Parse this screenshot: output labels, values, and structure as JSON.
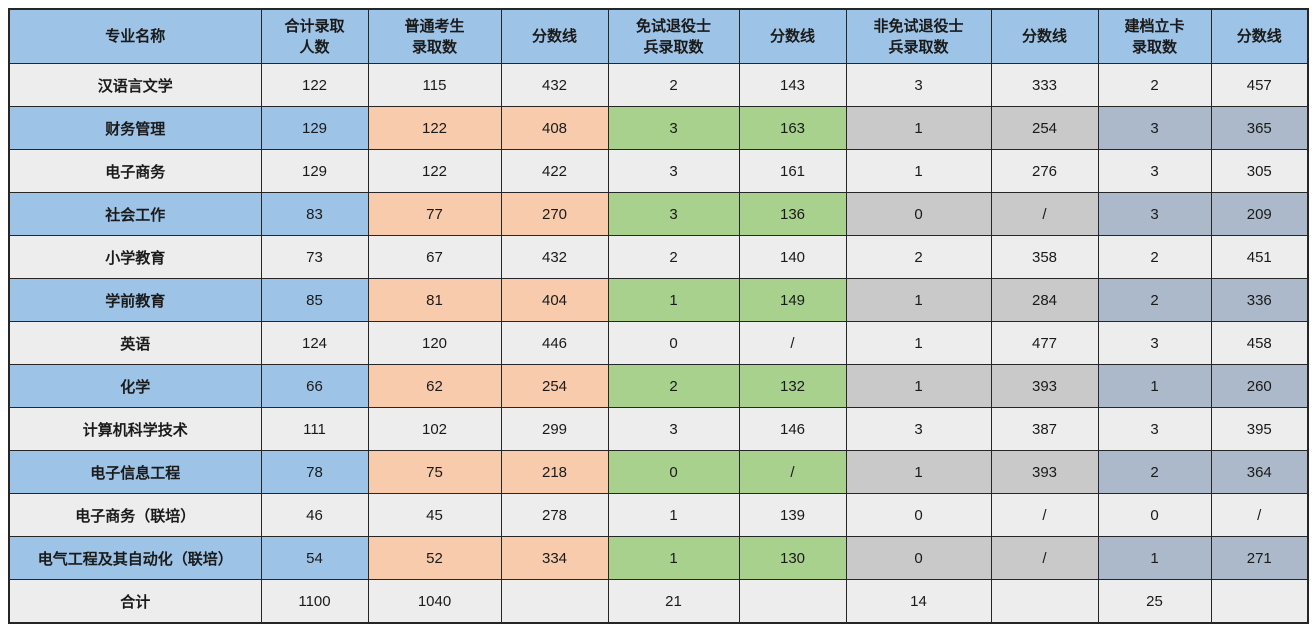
{
  "table": {
    "headers": [
      "专业名称",
      "合计录取\n人数",
      "普通考生\n录取数",
      "分数线",
      "免试退役士\n兵录取数",
      "分数线",
      "非免试退役士\n兵录取数",
      "分数线",
      "建档立卡\n录取数",
      "分数线"
    ],
    "rows": [
      {
        "name": "汉语言文学",
        "variant": "plain",
        "values": [
          "122",
          "115",
          "432",
          "2",
          "143",
          "3",
          "333",
          "2",
          "457"
        ]
      },
      {
        "name": "财务管理",
        "variant": "colored",
        "values": [
          "129",
          "122",
          "408",
          "3",
          "163",
          "1",
          "254",
          "3",
          "365"
        ]
      },
      {
        "name": "电子商务",
        "variant": "plain",
        "values": [
          "129",
          "122",
          "422",
          "3",
          "161",
          "1",
          "276",
          "3",
          "305"
        ]
      },
      {
        "name": "社会工作",
        "variant": "colored",
        "values": [
          "83",
          "77",
          "270",
          "3",
          "136",
          "0",
          "/",
          "3",
          "209"
        ]
      },
      {
        "name": "小学教育",
        "variant": "plain",
        "values": [
          "73",
          "67",
          "432",
          "2",
          "140",
          "2",
          "358",
          "2",
          "451"
        ]
      },
      {
        "name": "学前教育",
        "variant": "colored",
        "values": [
          "85",
          "81",
          "404",
          "1",
          "149",
          "1",
          "284",
          "2",
          "336"
        ]
      },
      {
        "name": "英语",
        "variant": "plain",
        "values": [
          "124",
          "120",
          "446",
          "0",
          "/",
          "1",
          "477",
          "3",
          "458"
        ]
      },
      {
        "name": "化学",
        "variant": "colored",
        "values": [
          "66",
          "62",
          "254",
          "2",
          "132",
          "1",
          "393",
          "1",
          "260"
        ]
      },
      {
        "name": "计算机科学技术",
        "variant": "plain",
        "values": [
          "111",
          "102",
          "299",
          "3",
          "146",
          "3",
          "387",
          "3",
          "395"
        ]
      },
      {
        "name": "电子信息工程",
        "variant": "colored",
        "values": [
          "78",
          "75",
          "218",
          "0",
          "/",
          "1",
          "393",
          "2",
          "364"
        ]
      },
      {
        "name": "电子商务（联培）",
        "variant": "plain",
        "values": [
          "46",
          "45",
          "278",
          "1",
          "139",
          "0",
          "/",
          "0",
          "/"
        ]
      },
      {
        "name": "电气工程及其自动化（联培）",
        "variant": "colored",
        "values": [
          "54",
          "52",
          "334",
          "1",
          "130",
          "0",
          "/",
          "1",
          "271"
        ]
      },
      {
        "name": "合计",
        "variant": "total",
        "values": [
          "1100",
          "1040",
          "",
          "21",
          "",
          "14",
          "",
          "25",
          ""
        ]
      }
    ]
  },
  "colors": {
    "header_bg": "#9DC3E6",
    "plain_bg": "#EDEDED",
    "blue": "#9DC3E6",
    "orange": "#F8CBAD",
    "green": "#A9D18E",
    "gray": "#C9C9C9",
    "bluegray": "#ACB9CA",
    "border": "#262626"
  }
}
